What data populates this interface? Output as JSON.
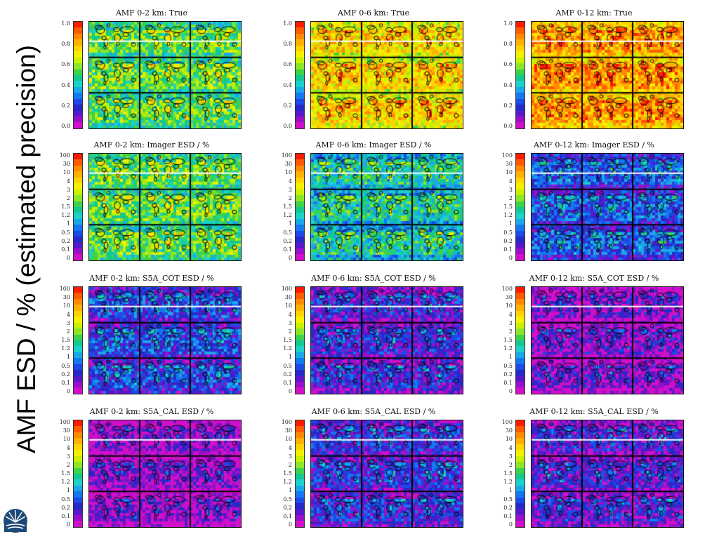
{
  "figure": {
    "ylabel": "AMF ESD / % (estimated precision)",
    "logo_icon": "starburst-logo-icon"
  },
  "colors": {
    "scale": [
      "#ff1a00",
      "#ff5a00",
      "#ff8a00",
      "#ffb000",
      "#ffd400",
      "#f4f000",
      "#c8f000",
      "#8ce628",
      "#3cd24a",
      "#14c890",
      "#1ad2c8",
      "#1aa8e8",
      "#1478f0",
      "#1c4ae6",
      "#2828c8",
      "#5a18c8",
      "#9a10c8",
      "#d010c8"
    ],
    "coast": "#000000",
    "separator": "#ffffff"
  },
  "chart_data": [
    {
      "type": "heatmap",
      "title": "AMF 0-2 km: True",
      "colorbar": [
        "1.0",
        "0.8",
        "0.6",
        "0.4",
        "0.2",
        "0.0"
      ],
      "colorbar_scale": "linear",
      "mean_level": 0.55
    },
    {
      "type": "heatmap",
      "title": "AMF 0-6 km: True",
      "colorbar": [
        "1.0",
        "0.8",
        "0.6",
        "0.4",
        "0.2",
        "0.0"
      ],
      "colorbar_scale": "linear",
      "mean_level": 0.75
    },
    {
      "type": "heatmap",
      "title": "AMF 0-12 km: True",
      "colorbar": [
        "1.0",
        "0.8",
        "0.6",
        "0.4",
        "0.2",
        "0.0"
      ],
      "colorbar_scale": "linear",
      "mean_level": 0.85
    },
    {
      "type": "heatmap",
      "title": "AMF 0-2 km: Imager ESD / %",
      "colorbar": [
        "100",
        "30",
        "10",
        "4",
        "3",
        "2",
        "1.5",
        "1.2",
        "1",
        "0.5",
        "0.2",
        "0.1",
        "0"
      ],
      "colorbar_scale": "nonlinear",
      "mean_level": 0.55
    },
    {
      "type": "heatmap",
      "title": "AMF 0-6 km: Imager ESD / %",
      "colorbar": [
        "100",
        "30",
        "10",
        "4",
        "3",
        "2",
        "1.5",
        "1.2",
        "1",
        "0.5",
        "0.2",
        "0.1",
        "0"
      ],
      "colorbar_scale": "nonlinear",
      "mean_level": 0.45
    },
    {
      "type": "heatmap",
      "title": "AMF 0-12 km: Imager ESD / %",
      "colorbar": [
        "100",
        "30",
        "10",
        "4",
        "3",
        "2",
        "1.5",
        "1.2",
        "1",
        "0.5",
        "0.2",
        "0.1",
        "0"
      ],
      "colorbar_scale": "nonlinear",
      "mean_level": 0.25
    },
    {
      "type": "heatmap",
      "title": "AMF 0-2 km: S5A_COT ESD / %",
      "colorbar": [
        "100",
        "30",
        "10",
        "4",
        "3",
        "2",
        "1.5",
        "1.2",
        "1",
        "0.5",
        "0.2",
        "0.1",
        "0"
      ],
      "colorbar_scale": "nonlinear",
      "mean_level": 0.22
    },
    {
      "type": "heatmap",
      "title": "AMF 0-6 km: S5A_COT ESD / %",
      "colorbar": [
        "100",
        "30",
        "10",
        "4",
        "3",
        "2",
        "1.5",
        "1.2",
        "1",
        "0.5",
        "0.2",
        "0.1",
        "0"
      ],
      "colorbar_scale": "nonlinear",
      "mean_level": 0.16
    },
    {
      "type": "heatmap",
      "title": "AMF 0-12 km: S5A_COT ESD / %",
      "colorbar": [
        "100",
        "30",
        "10",
        "4",
        "3",
        "2",
        "1.5",
        "1.2",
        "1",
        "0.5",
        "0.2",
        "0.1",
        "0"
      ],
      "colorbar_scale": "nonlinear",
      "mean_level": 0.08
    },
    {
      "type": "heatmap",
      "title": "AMF 0-2 km: S5A_CAL ESD / %",
      "colorbar": [
        "100",
        "30",
        "10",
        "4",
        "3",
        "2",
        "1.5",
        "1.2",
        "1",
        "0.5",
        "0.2",
        "0.1",
        "0"
      ],
      "colorbar_scale": "nonlinear",
      "mean_level": 0.06
    },
    {
      "type": "heatmap",
      "title": "AMF 0-6 km: S5A_CAL ESD / %",
      "colorbar": [
        "100",
        "30",
        "10",
        "4",
        "3",
        "2",
        "1.5",
        "1.2",
        "1",
        "0.5",
        "0.2",
        "0.1",
        "0"
      ],
      "colorbar_scale": "nonlinear",
      "mean_level": 0.18
    },
    {
      "type": "heatmap",
      "title": "AMF 0-12 km: S5A_CAL ESD / %",
      "colorbar": [
        "100",
        "30",
        "10",
        "4",
        "3",
        "2",
        "1.5",
        "1.2",
        "1",
        "0.5",
        "0.2",
        "0.1",
        "0"
      ],
      "colorbar_scale": "nonlinear",
      "mean_level": 0.14
    }
  ]
}
